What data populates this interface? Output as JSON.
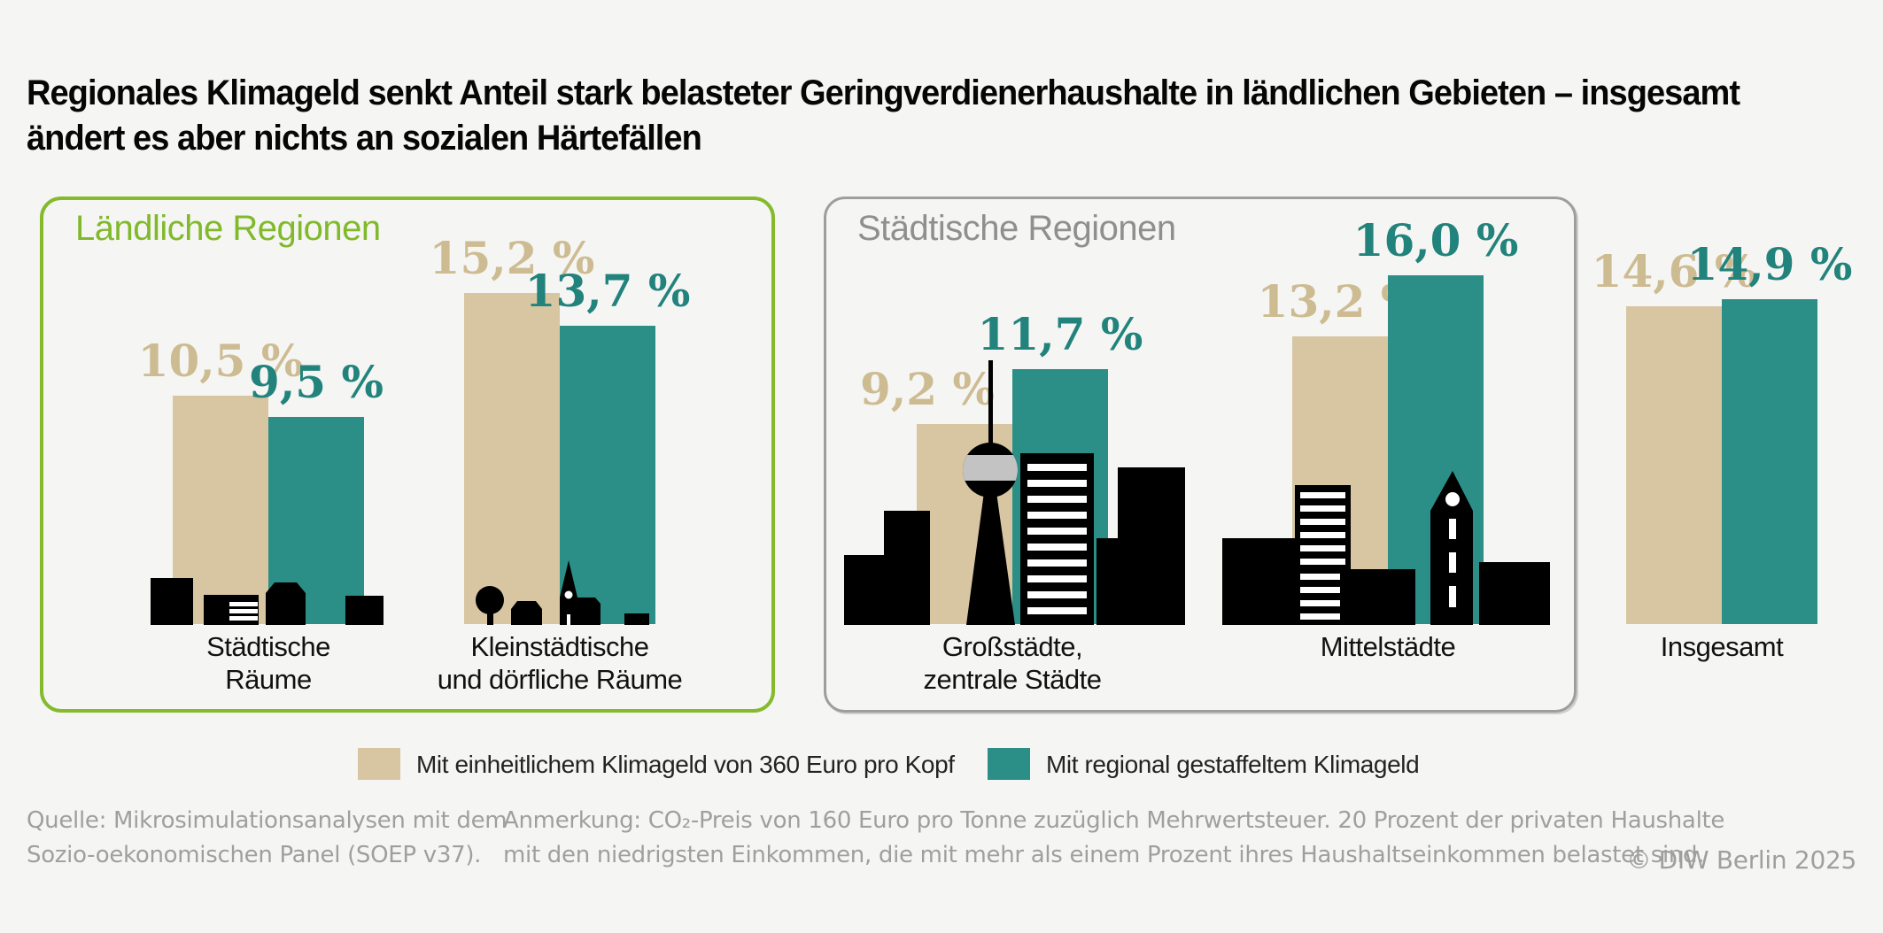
{
  "title": {
    "line1": "Regionales Klimageld senkt Anteil stark belasteter Geringverdienerhaushalte in ländlichen Gebieten – insgesamt",
    "line2": "ändert es aber nichts an sozialen Härtefällen"
  },
  "panels": {
    "rural": {
      "label": "Ländliche Regionen",
      "accent_color": "#80b92a"
    },
    "urban": {
      "label": "Städtische Regionen",
      "accent_color": "#8f8f8f"
    }
  },
  "legend": [
    {
      "label": "Mit einheitlichem Klimageld von 360 Euro pro Kopf",
      "color": "#d7c6a1"
    },
    {
      "label": "Mit regional gestaffeltem Klimageld",
      "color": "#2b8f88"
    }
  ],
  "footer": {
    "source_line1": "Quelle: Mikrosimulationsanalysen mit dem",
    "source_line2": "Sozio-oekonomischen Panel (SOEP v37).",
    "note_line1": "Anmerkung: CO₂-Preis von 160 Euro pro Tonne zuzüglich Mehrwertsteuer. 20 Prozent der privaten Haushalte",
    "note_line2": "mit den niedrigsten Einkommen, die mit mehr als einem Prozent ihres Haushaltseinkommen belastet sind.",
    "copyright": "© DIW Berlin 2025"
  },
  "chart_data": {
    "type": "bar",
    "unit": "%",
    "series_names": [
      "Mit einheitlichem Klimageld von 360 Euro pro Kopf",
      "Mit regional gestaffeltem Klimageld"
    ],
    "series_colors": [
      "#d7c6a1",
      "#2b8f88"
    ],
    "legend_position": "bottom",
    "groups": [
      {
        "panel": "Ländliche Regionen",
        "label_lines": [
          "Städtische",
          "Räume"
        ],
        "values": [
          10.5,
          9.5
        ],
        "value_labels": [
          "10,5 %",
          "9,5 %"
        ]
      },
      {
        "panel": "Ländliche Regionen",
        "label_lines": [
          "Kleinstädtische",
          "und dörfliche Räume"
        ],
        "values": [
          15.2,
          13.7
        ],
        "value_labels": [
          "15,2 %",
          "13,7 %"
        ]
      },
      {
        "panel": "Städtische Regionen",
        "label_lines": [
          "Großstädte,",
          "zentrale Städte"
        ],
        "values": [
          9.2,
          11.7
        ],
        "value_labels": [
          "9,2 %",
          "11,7 %"
        ]
      },
      {
        "panel": "Städtische Regionen",
        "label_lines": [
          "Mittelstädte"
        ],
        "values": [
          13.2,
          16.0
        ],
        "value_labels": [
          "13,2 %",
          "16,0 %"
        ]
      },
      {
        "panel": "",
        "label_lines": [
          "Insgesamt"
        ],
        "values": [
          14.6,
          14.9
        ],
        "value_labels": [
          "14,6 %",
          "14,9 %"
        ]
      }
    ]
  }
}
